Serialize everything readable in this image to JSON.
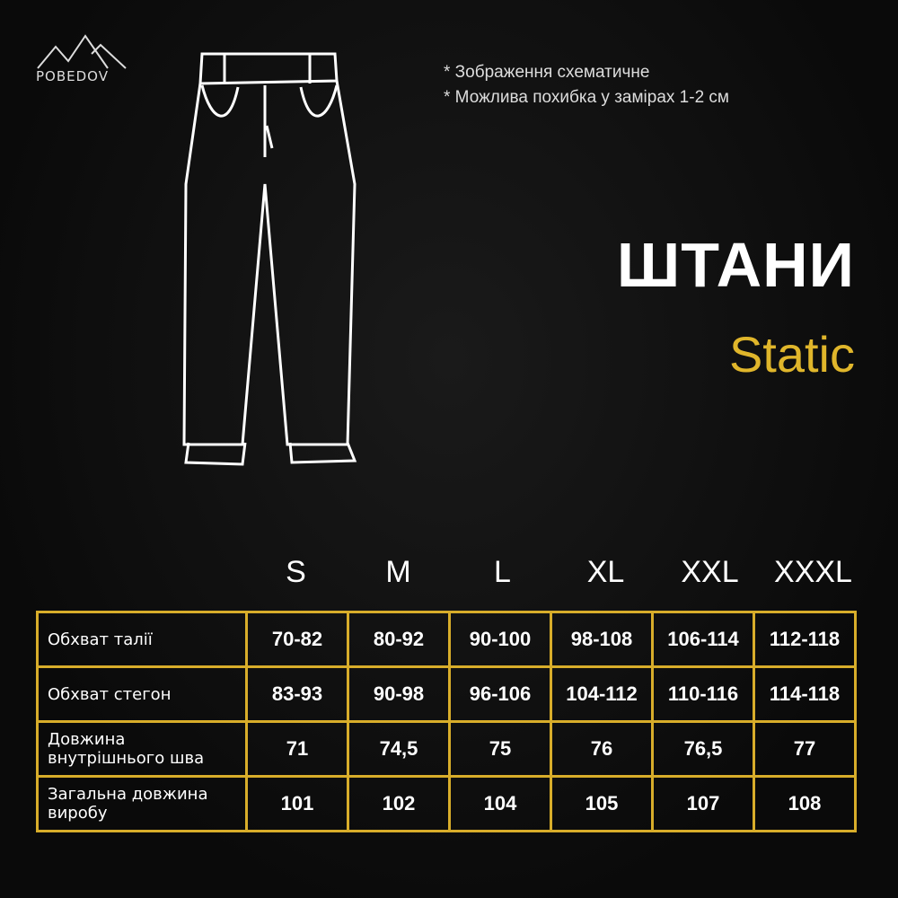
{
  "brand": {
    "logo_text": "POBEDOV"
  },
  "notes": [
    "* Зображення схематичне",
    "* Можлива похибка у замірах 1-2 см"
  ],
  "title": "ШТАНИ",
  "subtitle": "Static",
  "accent_color": "#e0b62b",
  "sizes": [
    "S",
    "M",
    "L",
    "XL",
    "XXL",
    "XXXL"
  ],
  "rows": [
    {
      "label": "Обхват талії",
      "values": [
        "70-82",
        "80-92",
        "90-100",
        "98-108",
        "106-114",
        "112-118"
      ]
    },
    {
      "label": "Обхват стегон",
      "values": [
        "83-93",
        "90-98",
        "96-106",
        "104-112",
        "110-116",
        "114-118"
      ]
    },
    {
      "label": "Довжина внутрішнього шва",
      "values": [
        "71",
        "74,5",
        "75",
        "76",
        "76,5",
        "77"
      ]
    },
    {
      "label": "Загальна довжина виробу",
      "values": [
        "101",
        "102",
        "104",
        "105",
        "107",
        "108"
      ]
    }
  ]
}
